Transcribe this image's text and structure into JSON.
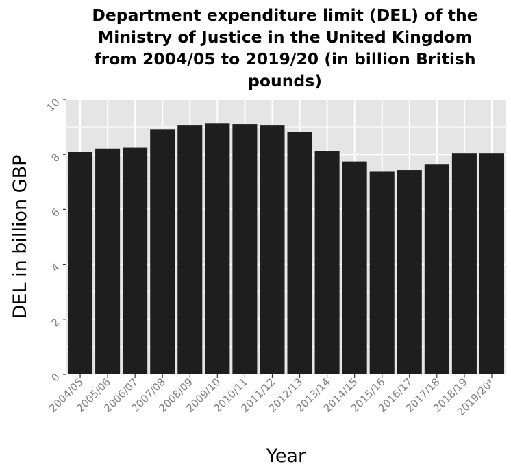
{
  "chart_data": {
    "type": "bar",
    "title": "Department expenditure limit (DEL) of the\nMinistry of Justice in the United Kingdom\nfrom 2004/05 to 2019/20 (in billion British\npounds)",
    "xlabel": "Year",
    "ylabel": "DEL in billion GBP",
    "categories": [
      "2004/05",
      "2005/06",
      "2006/07",
      "2007/08",
      "2008/09",
      "2009/10",
      "2010/11",
      "2011/12",
      "2012/13",
      "2013/14",
      "2014/15",
      "2015/16",
      "2016/17",
      "2017/18",
      "2018/19",
      "2019/20*"
    ],
    "values": [
      8.08,
      8.21,
      8.24,
      8.92,
      9.05,
      9.12,
      9.1,
      9.05,
      8.82,
      8.12,
      7.74,
      7.37,
      7.43,
      7.65,
      8.05,
      8.05
    ],
    "ylim": [
      0,
      10
    ],
    "yticks": [
      0,
      2,
      4,
      6,
      8,
      10
    ],
    "grid": true,
    "legend": "none",
    "colors": {
      "bar": "#1e1e1e",
      "panel": "#e5e5e5",
      "grid": "#ffffff",
      "tick_label": "#7f7f7f",
      "tick_mark": "#333333"
    }
  }
}
